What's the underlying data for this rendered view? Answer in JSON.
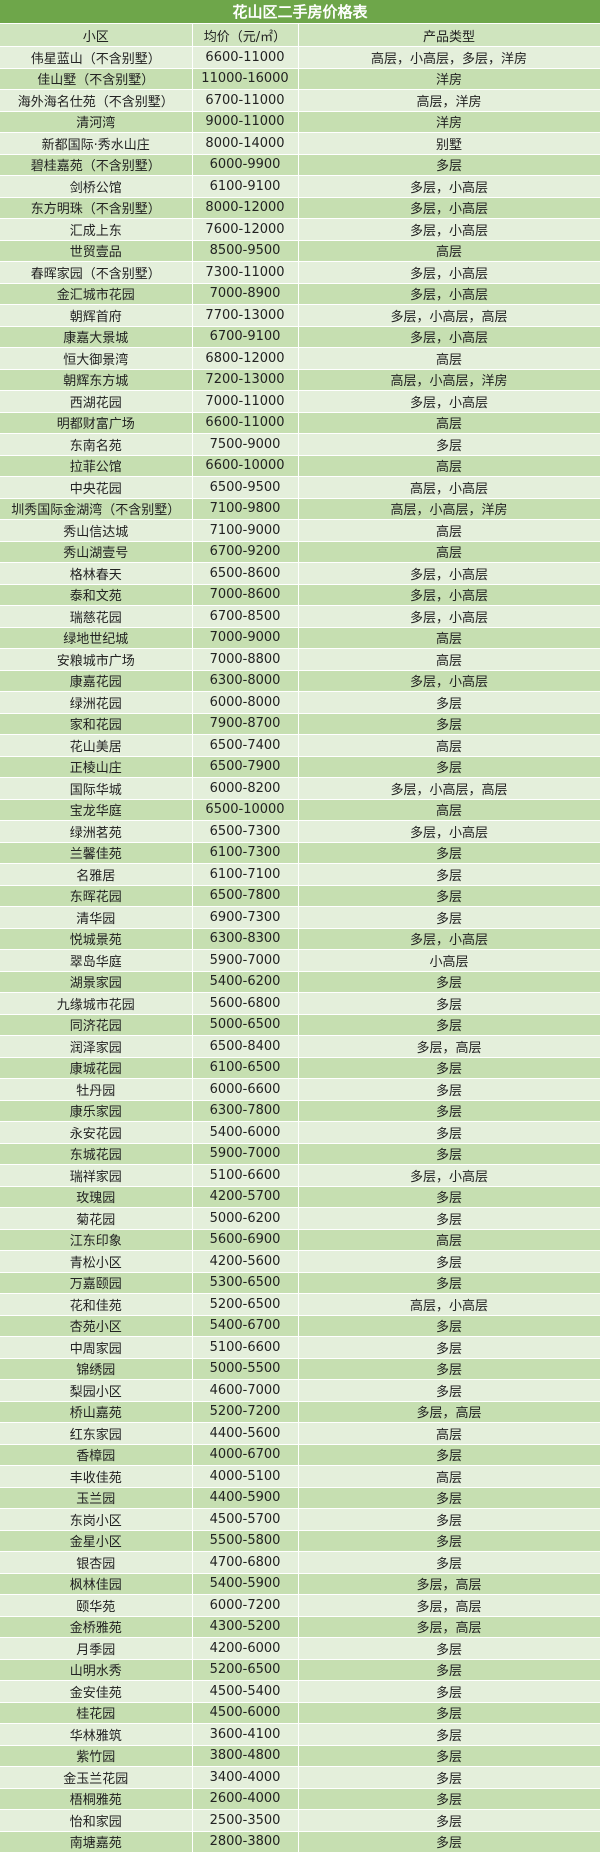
{
  "title": "花山区二手房价格表",
  "headers": [
    "小区",
    "均价（元/㎡）",
    "产品类型"
  ],
  "colors": {
    "title_bg": "#6ea64a",
    "row_green": "#c6dfb1",
    "row_light": "#e4efdb"
  },
  "rows": [
    [
      "伟星蓝山（不含别墅）",
      "6600-11000",
      "高层，小高层，多层，洋房"
    ],
    [
      "佳山墅（不含别墅）",
      "11000-16000",
      "洋房"
    ],
    [
      "海外海名仕苑（不含别墅）",
      "6700-11000",
      "高层，洋房"
    ],
    [
      "清河湾",
      "9000-11000",
      "洋房"
    ],
    [
      "新都国际·秀水山庄",
      "8000-14000",
      "别墅"
    ],
    [
      "碧桂嘉苑（不含别墅）",
      "6000-9900",
      "多层"
    ],
    [
      "剑桥公馆",
      "6100-9100",
      "多层，小高层"
    ],
    [
      "东方明珠（不含别墅）",
      "8000-12000",
      "多层，小高层"
    ],
    [
      "汇成上东",
      "7600-12000",
      "多层，小高层"
    ],
    [
      "世贸壹品",
      "8500-9500",
      "高层"
    ],
    [
      "春晖家园（不含别墅）",
      "7300-11000",
      "多层，小高层"
    ],
    [
      "金汇城市花园",
      "7000-8900",
      "多层，小高层"
    ],
    [
      "朝辉首府",
      "7700-13000",
      "多层，小高层，高层"
    ],
    [
      "康嘉大景城",
      "6700-9100",
      "多层，小高层"
    ],
    [
      "恒大御景湾",
      "6800-12000",
      "高层"
    ],
    [
      "朝辉东方城",
      "7200-13000",
      "高层，小高层，洋房"
    ],
    [
      "西湖花园",
      "7000-11000",
      "多层，小高层"
    ],
    [
      "明都财富广场",
      "6600-11000",
      "高层"
    ],
    [
      "东南名苑",
      "7500-9000",
      "多层"
    ],
    [
      "拉菲公馆",
      "6600-10000",
      "高层"
    ],
    [
      "中央花园",
      "6500-9500",
      "高层，小高层"
    ],
    [
      "圳秀国际金湖湾（不含别墅）",
      "7100-9800",
      "高层，小高层，洋房"
    ],
    [
      "秀山信达城",
      "7100-9000",
      "高层"
    ],
    [
      "秀山湖壹号",
      "6700-9200",
      "高层"
    ],
    [
      "格林春天",
      "6500-8600",
      "多层，小高层"
    ],
    [
      "泰和文苑",
      "7000-8600",
      "多层，小高层"
    ],
    [
      "瑞慈花园",
      "6700-8500",
      "多层，小高层"
    ],
    [
      "绿地世纪城",
      "7000-9000",
      "高层"
    ],
    [
      "安粮城市广场",
      "7000-8800",
      "高层"
    ],
    [
      "康嘉花园",
      "6300-8000",
      "多层，小高层"
    ],
    [
      "绿洲花园",
      "6000-8000",
      "多层"
    ],
    [
      "家和花园",
      "7900-8700",
      "多层"
    ],
    [
      "花山美居",
      "6500-7400",
      "高层"
    ],
    [
      "正棱山庄",
      "6500-7900",
      "多层"
    ],
    [
      "国际华城",
      "6000-8200",
      "多层，小高层，高层"
    ],
    [
      "宝龙华庭",
      "6500-10000",
      "高层"
    ],
    [
      "绿洲茗苑",
      "6500-7300",
      "多层，小高层"
    ],
    [
      "兰馨佳苑",
      "6100-7300",
      "多层"
    ],
    [
      "名雅居",
      "6100-7100",
      "多层"
    ],
    [
      "东晖花园",
      "6500-7800",
      "多层"
    ],
    [
      "清华园",
      "6900-7300",
      "多层"
    ],
    [
      "悦城景苑",
      "6300-8300",
      "多层，小高层"
    ],
    [
      "翠岛华庭",
      "5900-7000",
      "小高层"
    ],
    [
      "湖景家园",
      "5400-6200",
      "多层"
    ],
    [
      "九缘城市花园",
      "5600-6800",
      "多层"
    ],
    [
      "同济花园",
      "5000-6500",
      "多层"
    ],
    [
      "润泽家园",
      "6500-8400",
      "多层，高层"
    ],
    [
      "康城花园",
      "6100-6500",
      "多层"
    ],
    [
      "牡丹园",
      "6000-6600",
      "多层"
    ],
    [
      "康乐家园",
      "6300-7800",
      "多层"
    ],
    [
      "永安花园",
      "5400-6000",
      "多层"
    ],
    [
      "东城花园",
      "5900-7000",
      "多层"
    ],
    [
      "瑞祥家园",
      "5100-6600",
      "多层，小高层"
    ],
    [
      "玫瑰园",
      "4200-5700",
      "多层"
    ],
    [
      "菊花园",
      "5000-6200",
      "多层"
    ],
    [
      "江东印象",
      "5600-6900",
      "高层"
    ],
    [
      "青松小区",
      "4200-5600",
      "多层"
    ],
    [
      "万嘉颐园",
      "5300-6500",
      "多层"
    ],
    [
      "花和佳苑",
      "5200-6500",
      "高层，小高层"
    ],
    [
      "杏苑小区",
      "5400-6700",
      "多层"
    ],
    [
      "中周家园",
      "5100-6600",
      "多层"
    ],
    [
      "锦绣园",
      "5000-5500",
      "多层"
    ],
    [
      "梨园小区",
      "4600-7000",
      "多层"
    ],
    [
      "桥山嘉苑",
      "5200-7200",
      "多层，高层"
    ],
    [
      "红东家园",
      "4400-5600",
      "高层"
    ],
    [
      "香樟园",
      "4000-6700",
      "多层"
    ],
    [
      "丰收佳苑",
      "4000-5100",
      "高层"
    ],
    [
      "玉兰园",
      "4400-5900",
      "多层"
    ],
    [
      "东岗小区",
      "4500-5700",
      "多层"
    ],
    [
      "金星小区",
      "5500-5800",
      "多层"
    ],
    [
      "银杏园",
      "4700-6800",
      "多层"
    ],
    [
      "枫林佳园",
      "5400-5900",
      "多层，高层"
    ],
    [
      "颐华苑",
      "6000-7200",
      "多层，高层"
    ],
    [
      "金桥雅苑",
      "4300-5200",
      "多层，高层"
    ],
    [
      "月季园",
      "4200-6000",
      "多层"
    ],
    [
      "山明水秀",
      "5200-6500",
      "多层"
    ],
    [
      "金安佳苑",
      "4500-5400",
      "多层"
    ],
    [
      "桂花园",
      "4500-6000",
      "多层"
    ],
    [
      "华林雅筑",
      "3600-4100",
      "多层"
    ],
    [
      "紫竹园",
      "3800-4800",
      "多层"
    ],
    [
      "金玉兰花园",
      "3400-4000",
      "多层"
    ],
    [
      "梧桐雅苑",
      "2600-4000",
      "多层"
    ],
    [
      "怡和家园",
      "2500-3500",
      "多层"
    ],
    [
      "南塘嘉苑",
      "2800-3800",
      "多层"
    ]
  ]
}
